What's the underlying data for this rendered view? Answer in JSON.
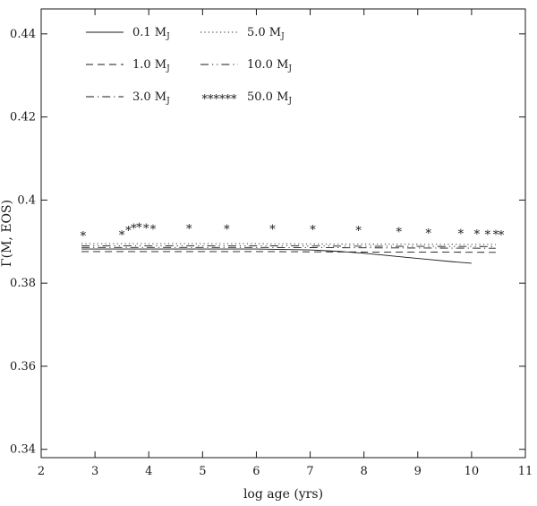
{
  "page": {
    "background": "#ffffff"
  },
  "chart_data": {
    "type": "line",
    "title": "",
    "xlabel": "log age (yrs)",
    "ylabel": "Γ(M, EOS)",
    "xlim": [
      2,
      11
    ],
    "ylim": [
      0.338,
      0.446
    ],
    "grid": false,
    "colors": {
      "line": "#1a1a1a",
      "background": "#ffffff"
    },
    "marker_glyph": "*",
    "xticks": {
      "values": [
        2,
        3,
        4,
        5,
        6,
        7,
        8,
        9,
        10,
        11
      ],
      "labels": [
        "2",
        "3",
        "4",
        "5",
        "6",
        "7",
        "8",
        "9",
        "10",
        "11"
      ]
    },
    "yticks": {
      "values": [
        0.34,
        0.36,
        0.38,
        0.4,
        0.42,
        0.44
      ],
      "labels": [
        "0.34",
        "0.36",
        "0.38",
        "0.4",
        "0.42",
        "0.44"
      ]
    },
    "legend": {
      "position": "top-left",
      "columns": 2,
      "marker_sample": "******"
    },
    "series": [
      {
        "name": "0.1 MJ",
        "label": "0.1 M",
        "subscript": "J",
        "style": "solid",
        "x": [
          2.75,
          4.0,
          5.0,
          6.0,
          6.5,
          7.0,
          7.3,
          7.6,
          8.0,
          8.4,
          8.8,
          9.2,
          9.6,
          10.0
        ],
        "y": [
          0.3882,
          0.3882,
          0.3882,
          0.3882,
          0.3881,
          0.388,
          0.3878,
          0.3876,
          0.3872,
          0.3867,
          0.3862,
          0.3857,
          0.3852,
          0.3848
        ]
      },
      {
        "name": "1.0 MJ",
        "label": "1.0 M",
        "subscript": "J",
        "style": "dashed",
        "x": [
          2.75,
          6.0,
          8.0,
          9.0,
          10.45
        ],
        "y": [
          0.3876,
          0.3876,
          0.3875,
          0.3875,
          0.3874
        ]
      },
      {
        "name": "3.0 MJ",
        "label": "3.0 M",
        "subscript": "J",
        "style": "dashdot",
        "x": [
          2.75,
          6.0,
          8.0,
          10.45
        ],
        "y": [
          0.3886,
          0.3886,
          0.3885,
          0.3884
        ]
      },
      {
        "name": "5.0 MJ",
        "label": "5.0 M",
        "subscript": "J",
        "style": "dotted",
        "x": [
          2.75,
          6.0,
          8.0,
          10.45
        ],
        "y": [
          0.3895,
          0.3895,
          0.3894,
          0.3893
        ]
      },
      {
        "name": "10.0 MJ",
        "label": "10.0 M",
        "subscript": "J",
        "style": "dashdotdot",
        "x": [
          2.75,
          6.0,
          8.0,
          10.45
        ],
        "y": [
          0.389,
          0.389,
          0.3889,
          0.3888
        ]
      },
      {
        "name": "50.0 MJ",
        "label": "50.0 M",
        "subscript": "J",
        "style": "asterisk",
        "x": [
          2.78,
          3.5,
          3.62,
          3.72,
          3.82,
          3.95,
          4.08,
          4.75,
          5.45,
          6.3,
          7.05,
          7.9,
          8.65,
          9.2,
          9.8,
          10.1,
          10.3,
          10.45,
          10.55
        ],
        "y": [
          0.392,
          0.3922,
          0.3933,
          0.3938,
          0.3941,
          0.3938,
          0.3936,
          0.3937,
          0.3936,
          0.3936,
          0.3935,
          0.3933,
          0.393,
          0.3927,
          0.3925,
          0.3924,
          0.3923,
          0.3923,
          0.3922
        ]
      }
    ]
  }
}
